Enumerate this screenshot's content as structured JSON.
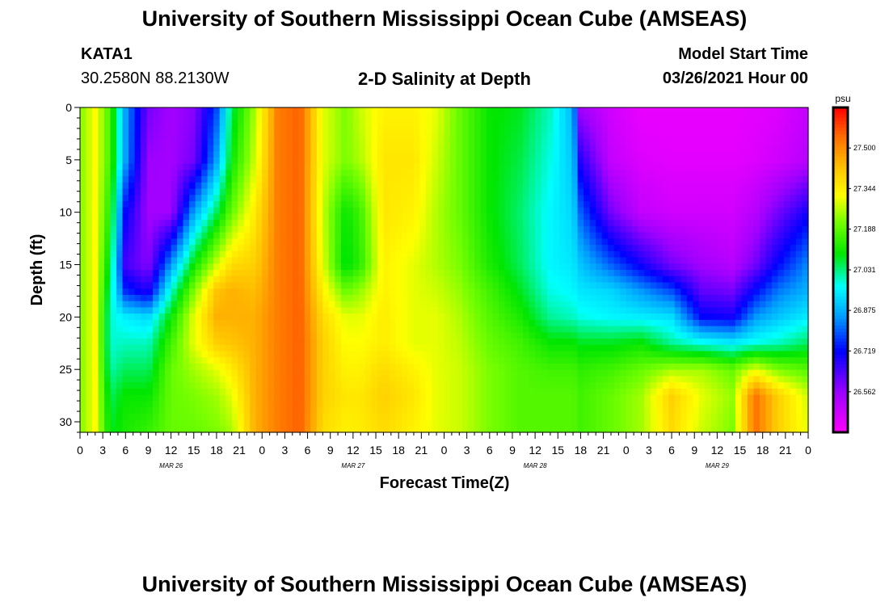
{
  "header": {
    "title": "University of Southern Mississippi Ocean Cube (AMSEAS)",
    "footer_title": "University of Southern Mississippi Ocean Cube (AMSEAS)",
    "station": "KATA1",
    "coords": "30.2580N  88.2130W",
    "plot_title": "2-D Salinity at Depth",
    "model_start_label": "Model Start Time",
    "model_start_value": "03/26/2021 Hour 00"
  },
  "chart_data": {
    "type": "heatmap",
    "title": "2-D Salinity at Depth",
    "xlabel": "Forecast Time(Z)",
    "ylabel": "Depth (ft)",
    "xlim": [
      0,
      96
    ],
    "ylim": [
      0,
      31
    ],
    "y_ticks": [
      0,
      5,
      10,
      15,
      20,
      25,
      30
    ],
    "x_tick_labels": [
      "0",
      "3",
      "6",
      "9",
      "12",
      "15",
      "18",
      "21",
      "0",
      "3",
      "6",
      "9",
      "12",
      "15",
      "18",
      "21",
      "0",
      "3",
      "6",
      "9",
      "12",
      "15",
      "18",
      "21",
      "0",
      "3",
      "6",
      "9",
      "12",
      "15",
      "18",
      "21",
      "0"
    ],
    "date_labels": [
      {
        "label": "MAR 26",
        "hour": 12
      },
      {
        "label": "MAR 27",
        "hour": 36
      },
      {
        "label": "MAR 28",
        "hour": 60
      },
      {
        "label": "MAR 29",
        "hour": 84
      }
    ],
    "colorbar": {
      "unit": "psu",
      "min": 26.406,
      "max": 27.656,
      "tick_values": [
        27.5,
        27.344,
        27.188,
        27.031,
        26.875,
        26.719,
        26.562
      ],
      "tick_labels": [
        "27.500",
        "27.344",
        "27.188",
        "27.031",
        "26.875",
        "26.719",
        "26.562"
      ]
    },
    "depths": [
      0,
      5,
      10,
      15,
      17.5,
      20,
      22.5,
      25,
      27.5,
      31
    ],
    "columns": [
      {
        "hour": 0,
        "values": [
          27.22,
          27.22,
          27.22,
          27.22,
          27.22,
          27.22,
          27.22,
          27.22,
          27.22,
          27.22
        ]
      },
      {
        "hour": 2,
        "values": [
          27.32,
          27.32,
          27.32,
          27.32,
          27.32,
          27.32,
          27.32,
          27.32,
          27.32,
          27.32
        ]
      },
      {
        "hour": 4,
        "values": [
          27.16,
          27.16,
          27.12,
          27.06,
          27.02,
          26.99,
          26.99,
          27.01,
          27.05,
          27.08
        ]
      },
      {
        "hour": 6,
        "values": [
          26.86,
          26.86,
          26.72,
          26.65,
          26.75,
          26.95,
          27.0,
          27.05,
          27.1,
          27.12
        ]
      },
      {
        "hour": 9,
        "values": [
          26.6,
          26.56,
          26.55,
          26.58,
          26.68,
          26.92,
          27.0,
          27.05,
          27.1,
          27.15
        ]
      },
      {
        "hour": 12,
        "values": [
          26.55,
          26.55,
          26.55,
          26.85,
          26.99,
          27.1,
          27.16,
          27.2,
          27.2,
          27.2
        ]
      },
      {
        "hour": 15,
        "values": [
          26.58,
          26.6,
          26.86,
          27.1,
          27.22,
          27.3,
          27.3,
          27.25,
          27.22,
          27.2
        ]
      },
      {
        "hour": 18,
        "values": [
          26.78,
          26.86,
          27.05,
          27.28,
          27.42,
          27.45,
          27.4,
          27.3,
          27.25,
          27.22
        ]
      },
      {
        "hour": 20,
        "values": [
          27.05,
          27.1,
          27.2,
          27.38,
          27.45,
          27.45,
          27.42,
          27.35,
          27.3,
          27.25
        ]
      },
      {
        "hour": 23,
        "values": [
          27.25,
          27.28,
          27.35,
          27.4,
          27.43,
          27.45,
          27.45,
          27.45,
          27.45,
          27.45
        ]
      },
      {
        "hour": 26,
        "values": [
          27.52,
          27.52,
          27.52,
          27.52,
          27.52,
          27.52,
          27.52,
          27.52,
          27.52,
          27.52
        ]
      },
      {
        "hour": 29,
        "values": [
          27.56,
          27.56,
          27.56,
          27.56,
          27.56,
          27.56,
          27.56,
          27.56,
          27.56,
          27.56
        ]
      },
      {
        "hour": 32,
        "values": [
          27.3,
          27.3,
          27.28,
          27.3,
          27.34,
          27.38,
          27.4,
          27.4,
          27.4,
          27.38
        ]
      },
      {
        "hour": 35,
        "values": [
          27.22,
          27.22,
          27.1,
          27.08,
          27.2,
          27.3,
          27.32,
          27.34,
          27.36,
          27.34
        ]
      },
      {
        "hour": 37,
        "values": [
          27.28,
          27.26,
          27.16,
          27.14,
          27.24,
          27.3,
          27.32,
          27.34,
          27.36,
          27.35
        ]
      },
      {
        "hour": 40,
        "values": [
          27.34,
          27.36,
          27.36,
          27.34,
          27.34,
          27.35,
          27.35,
          27.38,
          27.4,
          27.38
        ]
      },
      {
        "hour": 44,
        "values": [
          27.34,
          27.36,
          27.34,
          27.3,
          27.3,
          27.3,
          27.3,
          27.34,
          27.36,
          27.34
        ]
      },
      {
        "hour": 47,
        "values": [
          27.3,
          27.28,
          27.26,
          27.26,
          27.28,
          27.3,
          27.3,
          27.3,
          27.3,
          27.3
        ]
      },
      {
        "hour": 50,
        "values": [
          27.2,
          27.2,
          27.2,
          27.22,
          27.24,
          27.26,
          27.27,
          27.28,
          27.28,
          27.28
        ]
      },
      {
        "hour": 54,
        "values": [
          27.1,
          27.1,
          27.1,
          27.12,
          27.16,
          27.18,
          27.2,
          27.22,
          27.22,
          27.22
        ]
      },
      {
        "hour": 58,
        "values": [
          27.08,
          27.06,
          27.04,
          27.05,
          27.08,
          27.12,
          27.16,
          27.18,
          27.18,
          27.18
        ]
      },
      {
        "hour": 62,
        "values": [
          27.0,
          26.98,
          26.96,
          26.96,
          26.98,
          27.02,
          27.1,
          27.16,
          27.18,
          27.18
        ]
      },
      {
        "hour": 65,
        "values": [
          26.88,
          26.9,
          26.92,
          26.94,
          26.96,
          27.0,
          27.1,
          27.16,
          27.18,
          27.18
        ]
      },
      {
        "hour": 66,
        "values": [
          26.55,
          26.68,
          26.8,
          26.9,
          26.94,
          26.98,
          27.08,
          27.14,
          27.16,
          27.16
        ]
      },
      {
        "hour": 70,
        "values": [
          26.48,
          26.5,
          26.6,
          26.8,
          26.92,
          26.96,
          27.08,
          27.16,
          27.2,
          27.2
        ]
      },
      {
        "hour": 74,
        "values": [
          26.44,
          26.46,
          26.5,
          26.7,
          26.85,
          26.95,
          27.1,
          27.2,
          27.25,
          27.25
        ]
      },
      {
        "hour": 78,
        "values": [
          26.44,
          26.45,
          26.48,
          26.6,
          26.78,
          26.93,
          27.02,
          27.25,
          27.4,
          27.38
        ]
      },
      {
        "hour": 82,
        "values": [
          26.44,
          26.45,
          26.48,
          26.55,
          26.62,
          26.72,
          26.98,
          27.25,
          27.3,
          27.28
        ]
      },
      {
        "hour": 86,
        "values": [
          26.44,
          26.45,
          26.48,
          26.52,
          26.6,
          26.7,
          26.95,
          27.2,
          27.24,
          27.22
        ]
      },
      {
        "hour": 89,
        "values": [
          26.45,
          26.46,
          26.52,
          26.6,
          26.72,
          26.85,
          26.98,
          27.3,
          27.54,
          27.54
        ]
      },
      {
        "hour": 92,
        "values": [
          26.46,
          26.48,
          26.6,
          26.72,
          26.82,
          26.9,
          27.0,
          27.22,
          27.4,
          27.4
        ]
      },
      {
        "hour": 96,
        "values": [
          26.5,
          26.52,
          26.7,
          26.84,
          26.88,
          26.95,
          27.05,
          27.18,
          27.28,
          27.3
        ]
      }
    ]
  }
}
